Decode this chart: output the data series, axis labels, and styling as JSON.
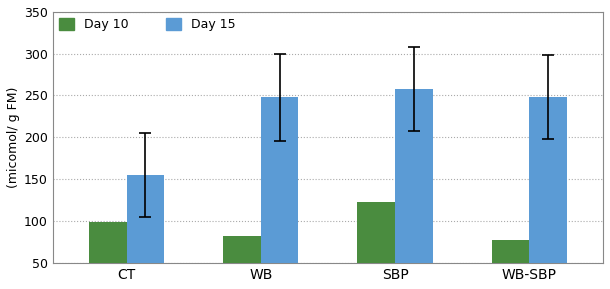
{
  "categories": [
    "CT",
    "WB",
    "SBP",
    "WB-SBP"
  ],
  "day10_values": [
    98,
    82,
    122,
    77
  ],
  "day15_values": [
    155,
    248,
    258,
    248
  ],
  "day15_errors": [
    50,
    52,
    50,
    50
  ],
  "day10_color": "#4a8c3f",
  "day15_color": "#5b9bd5",
  "ylabel": "(micomol/ g FM)",
  "ylim": [
    50,
    350
  ],
  "yticks": [
    50,
    100,
    150,
    200,
    250,
    300,
    350
  ],
  "legend_labels": [
    "Day 10",
    "Day 15"
  ],
  "bar_width": 0.28,
  "grid_color": "#aaaaaa",
  "spine_color": "#888888"
}
